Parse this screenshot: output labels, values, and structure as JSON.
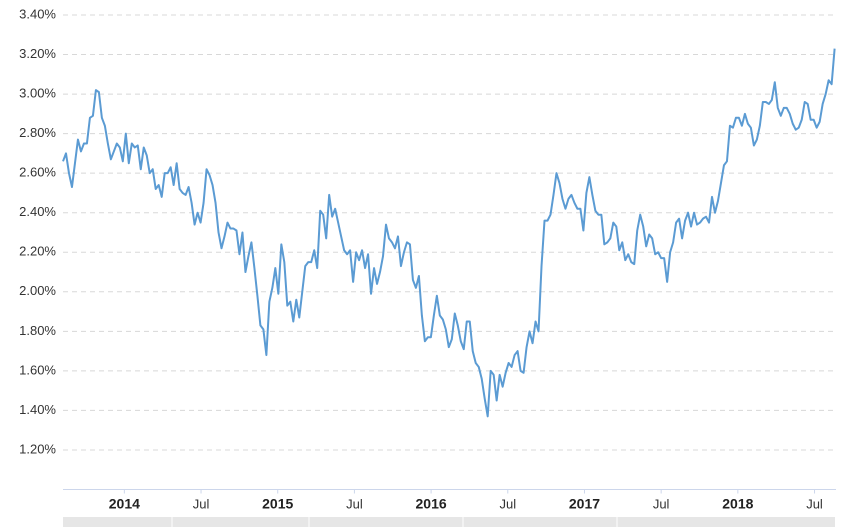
{
  "chart_data": {
    "type": "line",
    "color": "#5b9bd3",
    "grid": true,
    "xlim": [
      2013.6,
      2018.64
    ],
    "ylim": [
      1.0,
      3.4
    ],
    "yticks": [
      {
        "value": 1.2,
        "label": "1.20%"
      },
      {
        "value": 1.4,
        "label": "1.40%"
      },
      {
        "value": 1.6,
        "label": "1.60%"
      },
      {
        "value": 1.8,
        "label": "1.80%"
      },
      {
        "value": 2.0,
        "label": "2.00%"
      },
      {
        "value": 2.2,
        "label": "2.20%"
      },
      {
        "value": 2.4,
        "label": "2.40%"
      },
      {
        "value": 2.6,
        "label": "2.60%"
      },
      {
        "value": 2.8,
        "label": "2.80%"
      },
      {
        "value": 3.0,
        "label": "3.00%"
      },
      {
        "value": 3.2,
        "label": "3.20%"
      },
      {
        "value": 3.4,
        "label": "3.40%"
      }
    ],
    "xticks": [
      2014,
      {
        "value": 2014.5,
        "label": "Jul"
      },
      2015,
      {
        "value": 2015.5,
        "label": "Jul"
      },
      2016,
      {
        "value": 2016.5,
        "label": "Jul"
      },
      2017,
      {
        "value": 2017.5,
        "label": "Jul"
      },
      2018,
      {
        "value": 2018.5,
        "label": "Jul"
      }
    ],
    "x": [
      2013.6,
      2013.6195,
      2013.639,
      2013.6585,
      2013.678,
      2013.6975,
      2013.717,
      2013.7365,
      2013.756,
      2013.7755,
      2013.795,
      2013.8145,
      2013.834,
      2013.8535,
      2013.873,
      2013.8925,
      2013.912,
      2013.9315,
      2013.951,
      2013.9705,
      2013.99,
      2014.0095,
      2014.029,
      2014.0485,
      2014.068,
      2014.0875,
      2014.107,
      2014.1265,
      2014.146,
      2014.1655,
      2014.185,
      2014.2045,
      2014.224,
      2014.2435,
      2014.263,
      2014.2825,
      2014.302,
      2014.3215,
      2014.341,
      2014.3605,
      2014.38,
      2014.3995,
      2014.419,
      2014.4385,
      2014.458,
      2014.4775,
      2014.497,
      2014.5165,
      2014.536,
      2014.5555,
      2014.575,
      2014.5945,
      2014.614,
      2014.6335,
      2014.653,
      2014.6725,
      2014.692,
      2014.7115,
      2014.731,
      2014.7505,
      2014.77,
      2014.7895,
      2014.809,
      2014.8285,
      2014.848,
      2014.8675,
      2014.887,
      2014.9065,
      2014.926,
      2014.9455,
      2014.965,
      2014.9845,
      2015.004,
      2015.0235,
      2015.043,
      2015.0625,
      2015.082,
      2015.1015,
      2015.121,
      2015.1405,
      2015.16,
      2015.1795,
      2015.199,
      2015.2185,
      2015.238,
      2015.2575,
      2015.277,
      2015.2965,
      2015.316,
      2015.3355,
      2015.355,
      2015.3745,
      2015.394,
      2015.4135,
      2015.433,
      2015.4525,
      2015.472,
      2015.4915,
      2015.511,
      2015.5305,
      2015.55,
      2015.5695,
      2015.589,
      2015.6085,
      2015.628,
      2015.6475,
      2015.667,
      2015.6865,
      2015.706,
      2015.7255,
      2015.745,
      2015.7645,
      2015.784,
      2015.8035,
      2015.823,
      2015.8425,
      2015.862,
      2015.8815,
      2015.901,
      2015.9205,
      2015.94,
      2015.9595,
      2015.979,
      2015.9985,
      2016.018,
      2016.0375,
      2016.057,
      2016.0765,
      2016.096,
      2016.1155,
      2016.135,
      2016.1545,
      2016.174,
      2016.1935,
      2016.213,
      2016.2325,
      2016.252,
      2016.2715,
      2016.291,
      2016.3105,
      2016.33,
      2016.3495,
      2016.369,
      2016.3885,
      2016.408,
      2016.4275,
      2016.447,
      2016.4665,
      2016.486,
      2016.5055,
      2016.525,
      2016.5445,
      2016.564,
      2016.5835,
      2016.603,
      2016.6225,
      2016.642,
      2016.6615,
      2016.681,
      2016.7005,
      2016.72,
      2016.7395,
      2016.759,
      2016.7785,
      2016.798,
      2016.8175,
      2016.837,
      2016.8565,
      2016.876,
      2016.8955,
      2016.915,
      2016.9345,
      2016.954,
      2016.9735,
      2016.993,
      2017.0125,
      2017.032,
      2017.0515,
      2017.071,
      2017.0905,
      2017.11,
      2017.1295,
      2017.149,
      2017.1685,
      2017.188,
      2017.2075,
      2017.227,
      2017.2465,
      2017.266,
      2017.2855,
      2017.305,
      2017.3245,
      2017.344,
      2017.3635,
      2017.383,
      2017.4025,
      2017.422,
      2017.4415,
      2017.461,
      2017.4805,
      2017.5,
      2017.5195,
      2017.539,
      2017.5585,
      2017.578,
      2017.5975,
      2017.617,
      2017.6365,
      2017.656,
      2017.6755,
      2017.695,
      2017.7145,
      2017.734,
      2017.7535,
      2017.773,
      2017.7925,
      2017.812,
      2017.8315,
      2017.851,
      2017.8705,
      2017.89,
      2017.9095,
      2017.929,
      2017.9485,
      2017.968,
      2017.9875,
      2018.007,
      2018.0265,
      2018.046,
      2018.0655,
      2018.085,
      2018.1045,
      2018.124,
      2018.1435,
      2018.163,
      2018.1825,
      2018.202,
      2018.2215,
      2018.241,
      2018.2605,
      2018.28,
      2018.2995,
      2018.319,
      2018.3385,
      2018.358,
      2018.3775,
      2018.397,
      2018.4165,
      2018.436,
      2018.4555,
      2018.475,
      2018.4945,
      2018.514,
      2018.5335,
      2018.553,
      2018.5725,
      2018.592,
      2018.6115,
      2018.631
    ],
    "values": [
      2.66,
      2.7,
      2.6,
      2.53,
      2.65,
      2.77,
      2.71,
      2.75,
      2.75,
      2.88,
      2.89,
      3.02,
      3.01,
      2.88,
      2.84,
      2.75,
      2.67,
      2.71,
      2.75,
      2.73,
      2.66,
      2.8,
      2.65,
      2.75,
      2.73,
      2.74,
      2.62,
      2.73,
      2.69,
      2.6,
      2.62,
      2.52,
      2.54,
      2.48,
      2.6,
      2.6,
      2.63,
      2.54,
      2.65,
      2.52,
      2.5,
      2.49,
      2.53,
      2.45,
      2.34,
      2.4,
      2.35,
      2.45,
      2.62,
      2.59,
      2.54,
      2.45,
      2.3,
      2.22,
      2.28,
      2.35,
      2.32,
      2.32,
      2.31,
      2.19,
      2.3,
      2.1,
      2.18,
      2.25,
      2.12,
      1.98,
      1.83,
      1.81,
      1.68,
      1.95,
      2.02,
      2.12,
      1.99,
      2.24,
      2.15,
      1.93,
      1.95,
      1.85,
      1.96,
      1.87,
      2.0,
      2.13,
      2.15,
      2.15,
      2.21,
      2.12,
      2.41,
      2.39,
      2.27,
      2.49,
      2.38,
      2.42,
      2.35,
      2.28,
      2.21,
      2.19,
      2.21,
      2.05,
      2.2,
      2.16,
      2.21,
      2.12,
      2.19,
      1.99,
      2.12,
      2.04,
      2.1,
      2.18,
      2.34,
      2.27,
      2.25,
      2.22,
      2.28,
      2.13,
      2.2,
      2.25,
      2.24,
      2.06,
      2.02,
      2.08,
      1.88,
      1.75,
      1.77,
      1.77,
      1.88,
      1.98,
      1.88,
      1.86,
      1.81,
      1.72,
      1.76,
      1.89,
      1.83,
      1.75,
      1.71,
      1.85,
      1.85,
      1.7,
      1.64,
      1.62,
      1.56,
      1.46,
      1.37,
      1.6,
      1.58,
      1.45,
      1.58,
      1.52,
      1.59,
      1.64,
      1.62,
      1.68,
      1.7,
      1.6,
      1.59,
      1.72,
      1.8,
      1.74,
      1.85,
      1.8,
      2.13,
      2.36,
      2.36,
      2.39,
      2.49,
      2.6,
      2.55,
      2.47,
      2.42,
      2.47,
      2.49,
      2.45,
      2.42,
      2.42,
      2.31,
      2.5,
      2.58,
      2.49,
      2.41,
      2.39,
      2.39,
      2.24,
      2.25,
      2.27,
      2.35,
      2.33,
      2.21,
      2.25,
      2.16,
      2.19,
      2.15,
      2.14,
      2.31,
      2.39,
      2.33,
      2.23,
      2.29,
      2.27,
      2.19,
      2.2,
      2.17,
      2.17,
      2.05,
      2.2,
      2.25,
      2.35,
      2.37,
      2.27,
      2.36,
      2.4,
      2.33,
      2.4,
      2.34,
      2.35,
      2.37,
      2.38,
      2.35,
      2.48,
      2.4,
      2.46,
      2.55,
      2.64,
      2.66,
      2.84,
      2.83,
      2.88,
      2.88,
      2.84,
      2.9,
      2.85,
      2.83,
      2.74,
      2.77,
      2.84,
      2.96,
      2.96,
      2.95,
      2.97,
      3.06,
      2.93,
      2.89,
      2.93,
      2.93,
      2.9,
      2.85,
      2.82,
      2.83,
      2.87,
      2.96,
      2.95,
      2.87,
      2.87,
      2.83,
      2.86,
      2.95,
      3.0,
      3.07,
      3.05,
      3.23
    ]
  }
}
